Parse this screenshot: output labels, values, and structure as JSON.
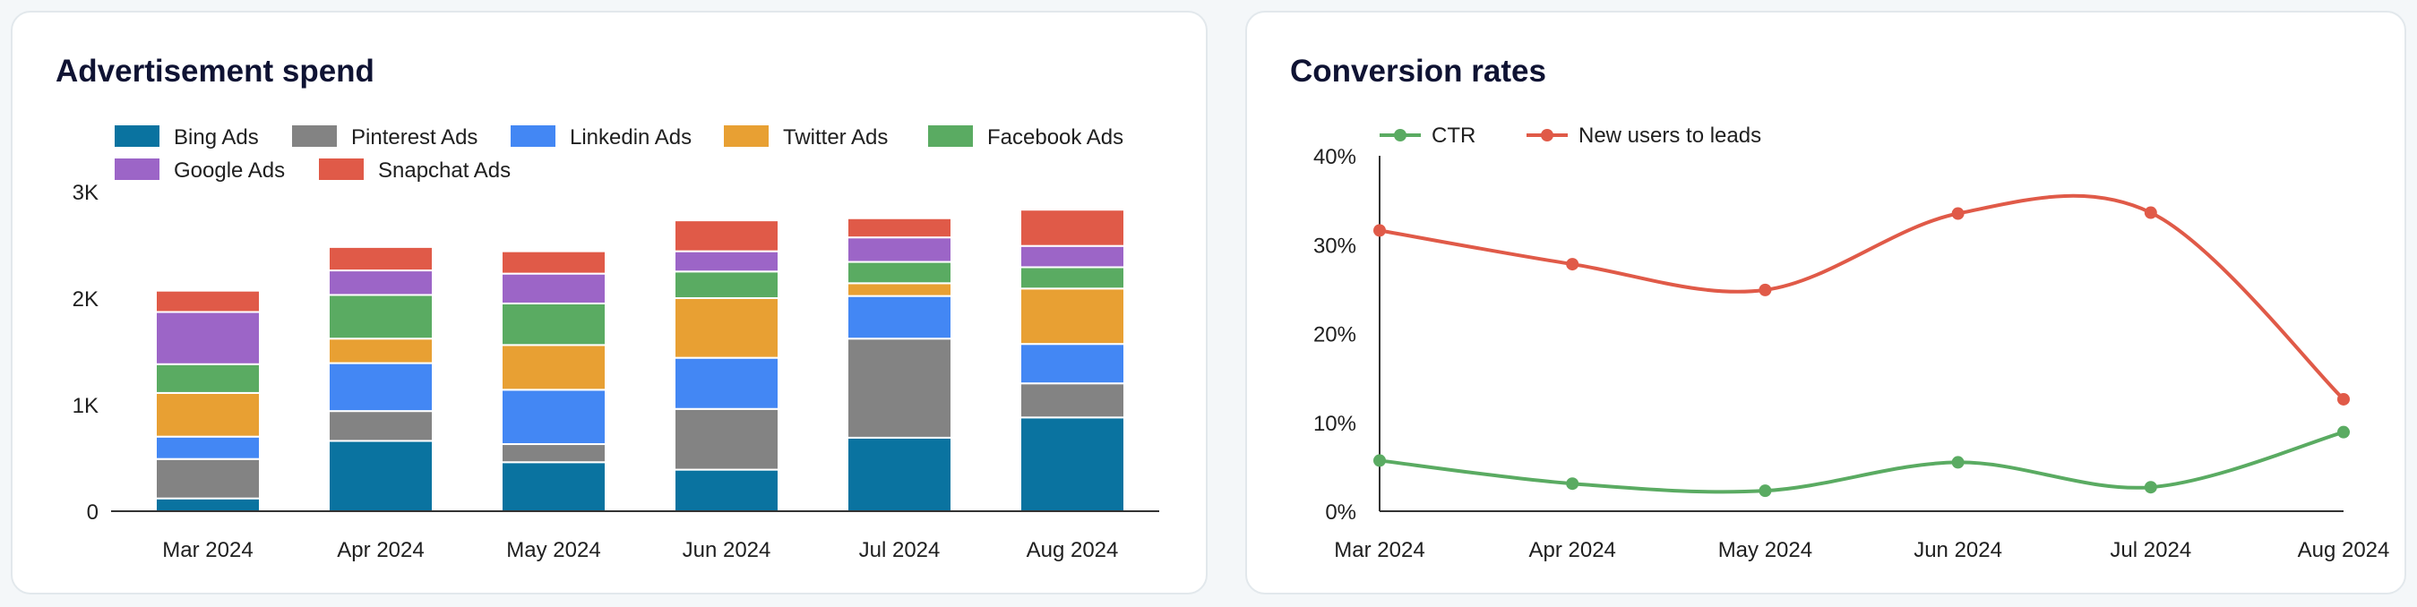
{
  "chart_data": [
    {
      "type": "bar",
      "stacked": true,
      "title": "Advertisement spend",
      "categories": [
        "Mar 2024",
        "Apr 2024",
        "May 2024",
        "Jun 2024",
        "Jul 2024",
        "Aug 2024"
      ],
      "ylim": [
        0,
        3000
      ],
      "yticks": [
        0,
        1000,
        2000,
        3000
      ],
      "ytick_labels": [
        "0",
        "1K",
        "2K",
        "3K"
      ],
      "legend_position": "top",
      "grid": false,
      "series": [
        {
          "name": "Bing Ads",
          "color": "#0a73a0",
          "values": [
            120,
            660,
            460,
            390,
            690,
            880
          ]
        },
        {
          "name": "Pinterest Ads",
          "color": "#838383",
          "values": [
            370,
            280,
            170,
            570,
            930,
            320
          ]
        },
        {
          "name": "Linkedin Ads",
          "color": "#4387f4",
          "values": [
            210,
            450,
            510,
            480,
            400,
            370
          ]
        },
        {
          "name": "Twitter Ads",
          "color": "#e8a033",
          "values": [
            410,
            230,
            420,
            560,
            120,
            520
          ]
        },
        {
          "name": "Facebook Ads",
          "color": "#5aab62",
          "values": [
            270,
            410,
            390,
            250,
            200,
            200
          ]
        },
        {
          "name": "Google Ads",
          "color": "#9c65c7",
          "values": [
            490,
            230,
            280,
            190,
            230,
            200
          ]
        },
        {
          "name": "Snapchat Ads",
          "color": "#e05a48",
          "values": [
            200,
            220,
            210,
            290,
            180,
            340
          ]
        }
      ]
    },
    {
      "type": "line",
      "smooth": true,
      "title": "Conversion rates",
      "categories": [
        "Mar 2024",
        "Apr 2024",
        "May 2024",
        "Jun 2024",
        "Jul 2024",
        "Aug 2024"
      ],
      "ylim": [
        0,
        40
      ],
      "yticks": [
        0,
        10,
        20,
        30,
        40
      ],
      "ytick_labels": [
        "0%",
        "10%",
        "20%",
        "30%",
        "40%"
      ],
      "legend_position": "top-left",
      "grid": false,
      "series": [
        {
          "name": "CTR",
          "color": "#5aab62",
          "values": [
            5.7,
            3.1,
            2.3,
            5.5,
            2.7,
            8.9
          ]
        },
        {
          "name": "New users to leads",
          "color": "#e05a48",
          "values": [
            31.6,
            27.8,
            24.9,
            33.5,
            33.6,
            12.6
          ]
        }
      ]
    }
  ]
}
